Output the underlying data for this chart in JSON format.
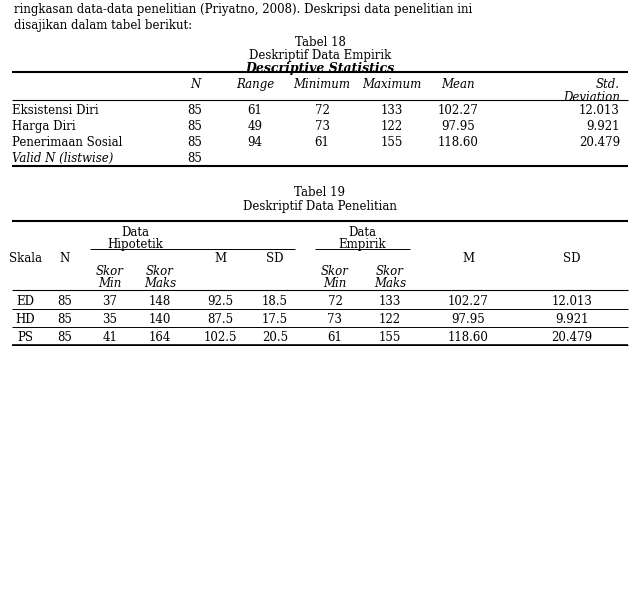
{
  "title1": "Tabel 18",
  "title2": "Deskriptif Data Empirik",
  "subtitle1": "Descriptive Statistics",
  "table1_headers": [
    "",
    "N",
    "Range",
    "Minimum",
    "Maximum",
    "Mean",
    "Std.",
    "Deviation"
  ],
  "table1_rows": [
    [
      "Eksistensi Diri",
      "85",
      "61",
      "72",
      "133",
      "102.27",
      "12.013"
    ],
    [
      "Harga Diri",
      "85",
      "49",
      "73",
      "122",
      "97.95",
      "9.921"
    ],
    [
      "Penerimaan Sosial",
      "85",
      "94",
      "61",
      "155",
      "118.60",
      "20.479"
    ],
    [
      "Valid N (listwise)",
      "85",
      "",
      "",
      "",
      "",
      ""
    ]
  ],
  "title3": "Tabel 19",
  "title4": "Deskriptif Data Penelitian",
  "table2_rows": [
    [
      "ED",
      "85",
      "37",
      "148",
      "92.5",
      "18.5",
      "72",
      "133",
      "102.27",
      "12.013"
    ],
    [
      "HD",
      "85",
      "35",
      "140",
      "87.5",
      "17.5",
      "73",
      "122",
      "97.95",
      "9.921"
    ],
    [
      "PS",
      "85",
      "41",
      "164",
      "102.5",
      "20.5",
      "61",
      "155",
      "118.60",
      "20.479"
    ]
  ],
  "text_intro1": "ringkasan data-data penelitian (Priyatno, 2008). Deskripsi data penelitian ini",
  "text_intro2": "disajikan dalam tabel berikut:",
  "bg_color": "#ffffff",
  "text_color": "#000000",
  "line_color": "#000000",
  "font_size": 8.5,
  "title_font_size": 9.5,
  "fig_width": 6.4,
  "fig_height": 5.99,
  "dpi": 100
}
